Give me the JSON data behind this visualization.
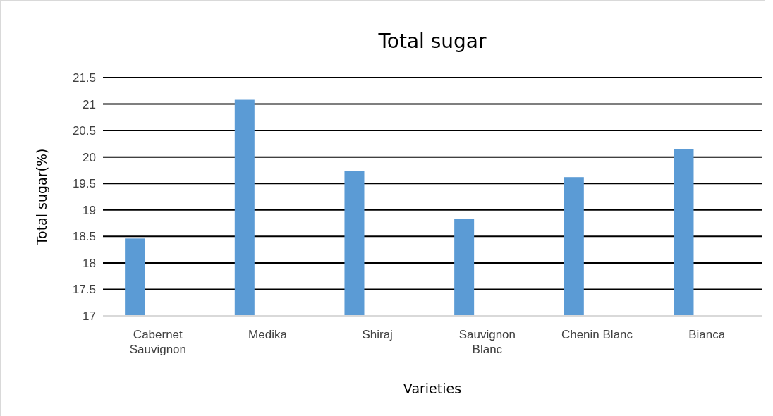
{
  "chart_data": {
    "type": "bar",
    "title": "Total sugar",
    "xlabel": "Varieties",
    "ylabel": "Total sugar(%)",
    "categories": [
      "Cabernet Sauvignon",
      "Medika",
      "Shiraj",
      "Sauvignon Blanc",
      "Chenin Blanc",
      "Bianca"
    ],
    "values": [
      18.46,
      21.08,
      19.73,
      18.83,
      19.62,
      20.15
    ],
    "color": "#5b9bd5",
    "ylim": [
      17,
      21.5
    ],
    "yticks": [
      17,
      17.5,
      18,
      18.5,
      19,
      19.5,
      20,
      20.5,
      21,
      21.5
    ],
    "grid": "y"
  }
}
